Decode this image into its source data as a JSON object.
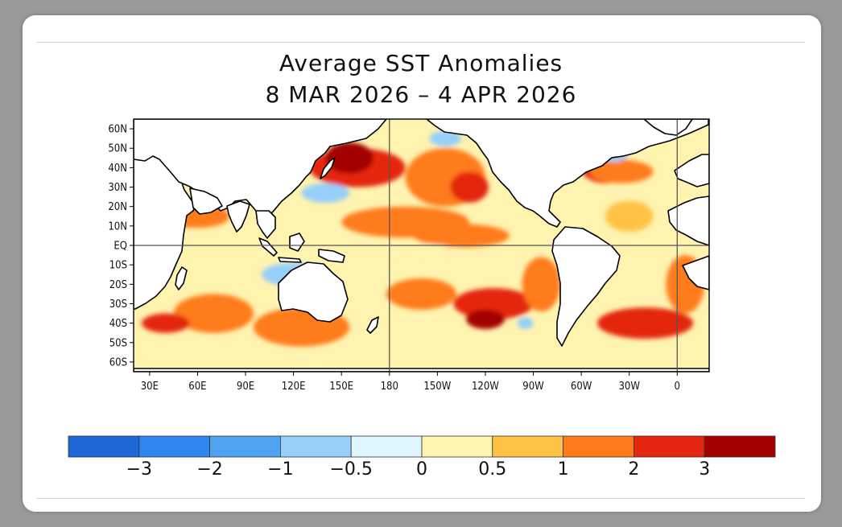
{
  "title": {
    "line1": "Average SST Anomalies",
    "line2": "8 MAR 2026 – 4 APR 2026"
  },
  "map": {
    "type": "sst_anomaly_map",
    "projection": "equirectangular",
    "lon_range": [
      20,
      380
    ],
    "lat_range": [
      -65,
      65
    ],
    "lat_ticks": [
      {
        "lat": 60,
        "label": "60N"
      },
      {
        "lat": 50,
        "label": "50N"
      },
      {
        "lat": 40,
        "label": "40N"
      },
      {
        "lat": 30,
        "label": "30N"
      },
      {
        "lat": 20,
        "label": "20N"
      },
      {
        "lat": 10,
        "label": "10N"
      },
      {
        "lat": 0,
        "label": "EQ"
      },
      {
        "lat": -10,
        "label": "10S"
      },
      {
        "lat": -20,
        "label": "20S"
      },
      {
        "lat": -30,
        "label": "30S"
      },
      {
        "lat": -40,
        "label": "40S"
      },
      {
        "lat": -50,
        "label": "50S"
      },
      {
        "lat": -60,
        "label": "60S"
      }
    ],
    "lon_ticks": [
      {
        "lon": 30,
        "label": "30E"
      },
      {
        "lon": 60,
        "label": "60E"
      },
      {
        "lon": 90,
        "label": "90E"
      },
      {
        "lon": 120,
        "label": "120E"
      },
      {
        "lon": 150,
        "label": "150E"
      },
      {
        "lon": 180,
        "label": "180"
      },
      {
        "lon": 210,
        "label": "150W"
      },
      {
        "lon": 240,
        "label": "120W"
      },
      {
        "lon": 270,
        "label": "90W"
      },
      {
        "lon": 300,
        "label": "60W"
      },
      {
        "lon": 330,
        "label": "30W"
      },
      {
        "lon": 360,
        "label": "0"
      }
    ],
    "reference_lines": {
      "lat": 0,
      "lon": [
        180,
        360
      ]
    },
    "anomaly_regions": [
      {
        "lon": 160,
        "lat": 40,
        "rx": 30,
        "ry": 10,
        "level": 2
      },
      {
        "lon": 155,
        "lat": 45,
        "rx": 15,
        "ry": 8,
        "level": 3
      },
      {
        "lon": 215,
        "lat": 35,
        "rx": 25,
        "ry": 15,
        "level": 1.5
      },
      {
        "lon": 230,
        "lat": 30,
        "rx": 12,
        "ry": 8,
        "level": 2
      },
      {
        "lon": 190,
        "lat": 12,
        "rx": 40,
        "ry": 8,
        "level": 1.5
      },
      {
        "lon": 225,
        "lat": 5,
        "rx": 30,
        "ry": 6,
        "level": 1
      },
      {
        "lon": 245,
        "lat": -30,
        "rx": 25,
        "ry": 8,
        "level": 2
      },
      {
        "lon": 240,
        "lat": -38,
        "rx": 12,
        "ry": 5,
        "level": 3
      },
      {
        "lon": 200,
        "lat": -25,
        "rx": 22,
        "ry": 8,
        "level": 1.2
      },
      {
        "lon": 275,
        "lat": -20,
        "rx": 12,
        "ry": 14,
        "level": 1.5
      },
      {
        "lon": 315,
        "lat": 40,
        "rx": 15,
        "ry": 8,
        "level": 2
      },
      {
        "lon": 325,
        "lat": 38,
        "rx": 20,
        "ry": 6,
        "level": 1.5
      },
      {
        "lon": 340,
        "lat": -40,
        "rx": 30,
        "ry": 8,
        "level": 2
      },
      {
        "lon": 365,
        "lat": -20,
        "rx": 12,
        "ry": 15,
        "level": 1.5
      },
      {
        "lon": 70,
        "lat": -35,
        "rx": 25,
        "ry": 10,
        "level": 1.5
      },
      {
        "lon": 40,
        "lat": -40,
        "rx": 15,
        "ry": 5,
        "level": 2
      },
      {
        "lon": 60,
        "lat": 15,
        "rx": 20,
        "ry": 6,
        "level": 1
      },
      {
        "lon": 125,
        "lat": -42,
        "rx": 30,
        "ry": 10,
        "level": 1.2
      },
      {
        "lon": 330,
        "lat": 15,
        "rx": 15,
        "ry": 8,
        "level": 0.6
      },
      {
        "lon": 120,
        "lat": -15,
        "rx": 20,
        "ry": 6,
        "level": -0.6
      },
      {
        "lon": 140,
        "lat": 27,
        "rx": 15,
        "ry": 5,
        "level": -0.6
      },
      {
        "lon": 215,
        "lat": 55,
        "rx": 10,
        "ry": 4,
        "level": -0.8
      },
      {
        "lon": 320,
        "lat": 48,
        "rx": 10,
        "ry": 5,
        "level": -0.8
      },
      {
        "lon": 265,
        "lat": -40,
        "rx": 5,
        "ry": 3,
        "level": -1
      },
      {
        "lon": 200,
        "lat": -5,
        "rx": 25,
        "ry": 6,
        "level": 0.3
      }
    ]
  },
  "colorbar": {
    "bounds": [
      "−3",
      "−2",
      "−1",
      "−0.5",
      "0",
      "0.5",
      "1",
      "2",
      "3"
    ],
    "colors": [
      "#1f66d6",
      "#2f86ee",
      "#4fa3f2",
      "#96cff8",
      "#dff6ff",
      "#fff3b0",
      "#ffc244",
      "#ff7b1a",
      "#e42610",
      "#a30000"
    ]
  },
  "colors": {
    "land": "#ffffff",
    "coast": "#000000",
    "background_ocean": "#fff3b0"
  }
}
